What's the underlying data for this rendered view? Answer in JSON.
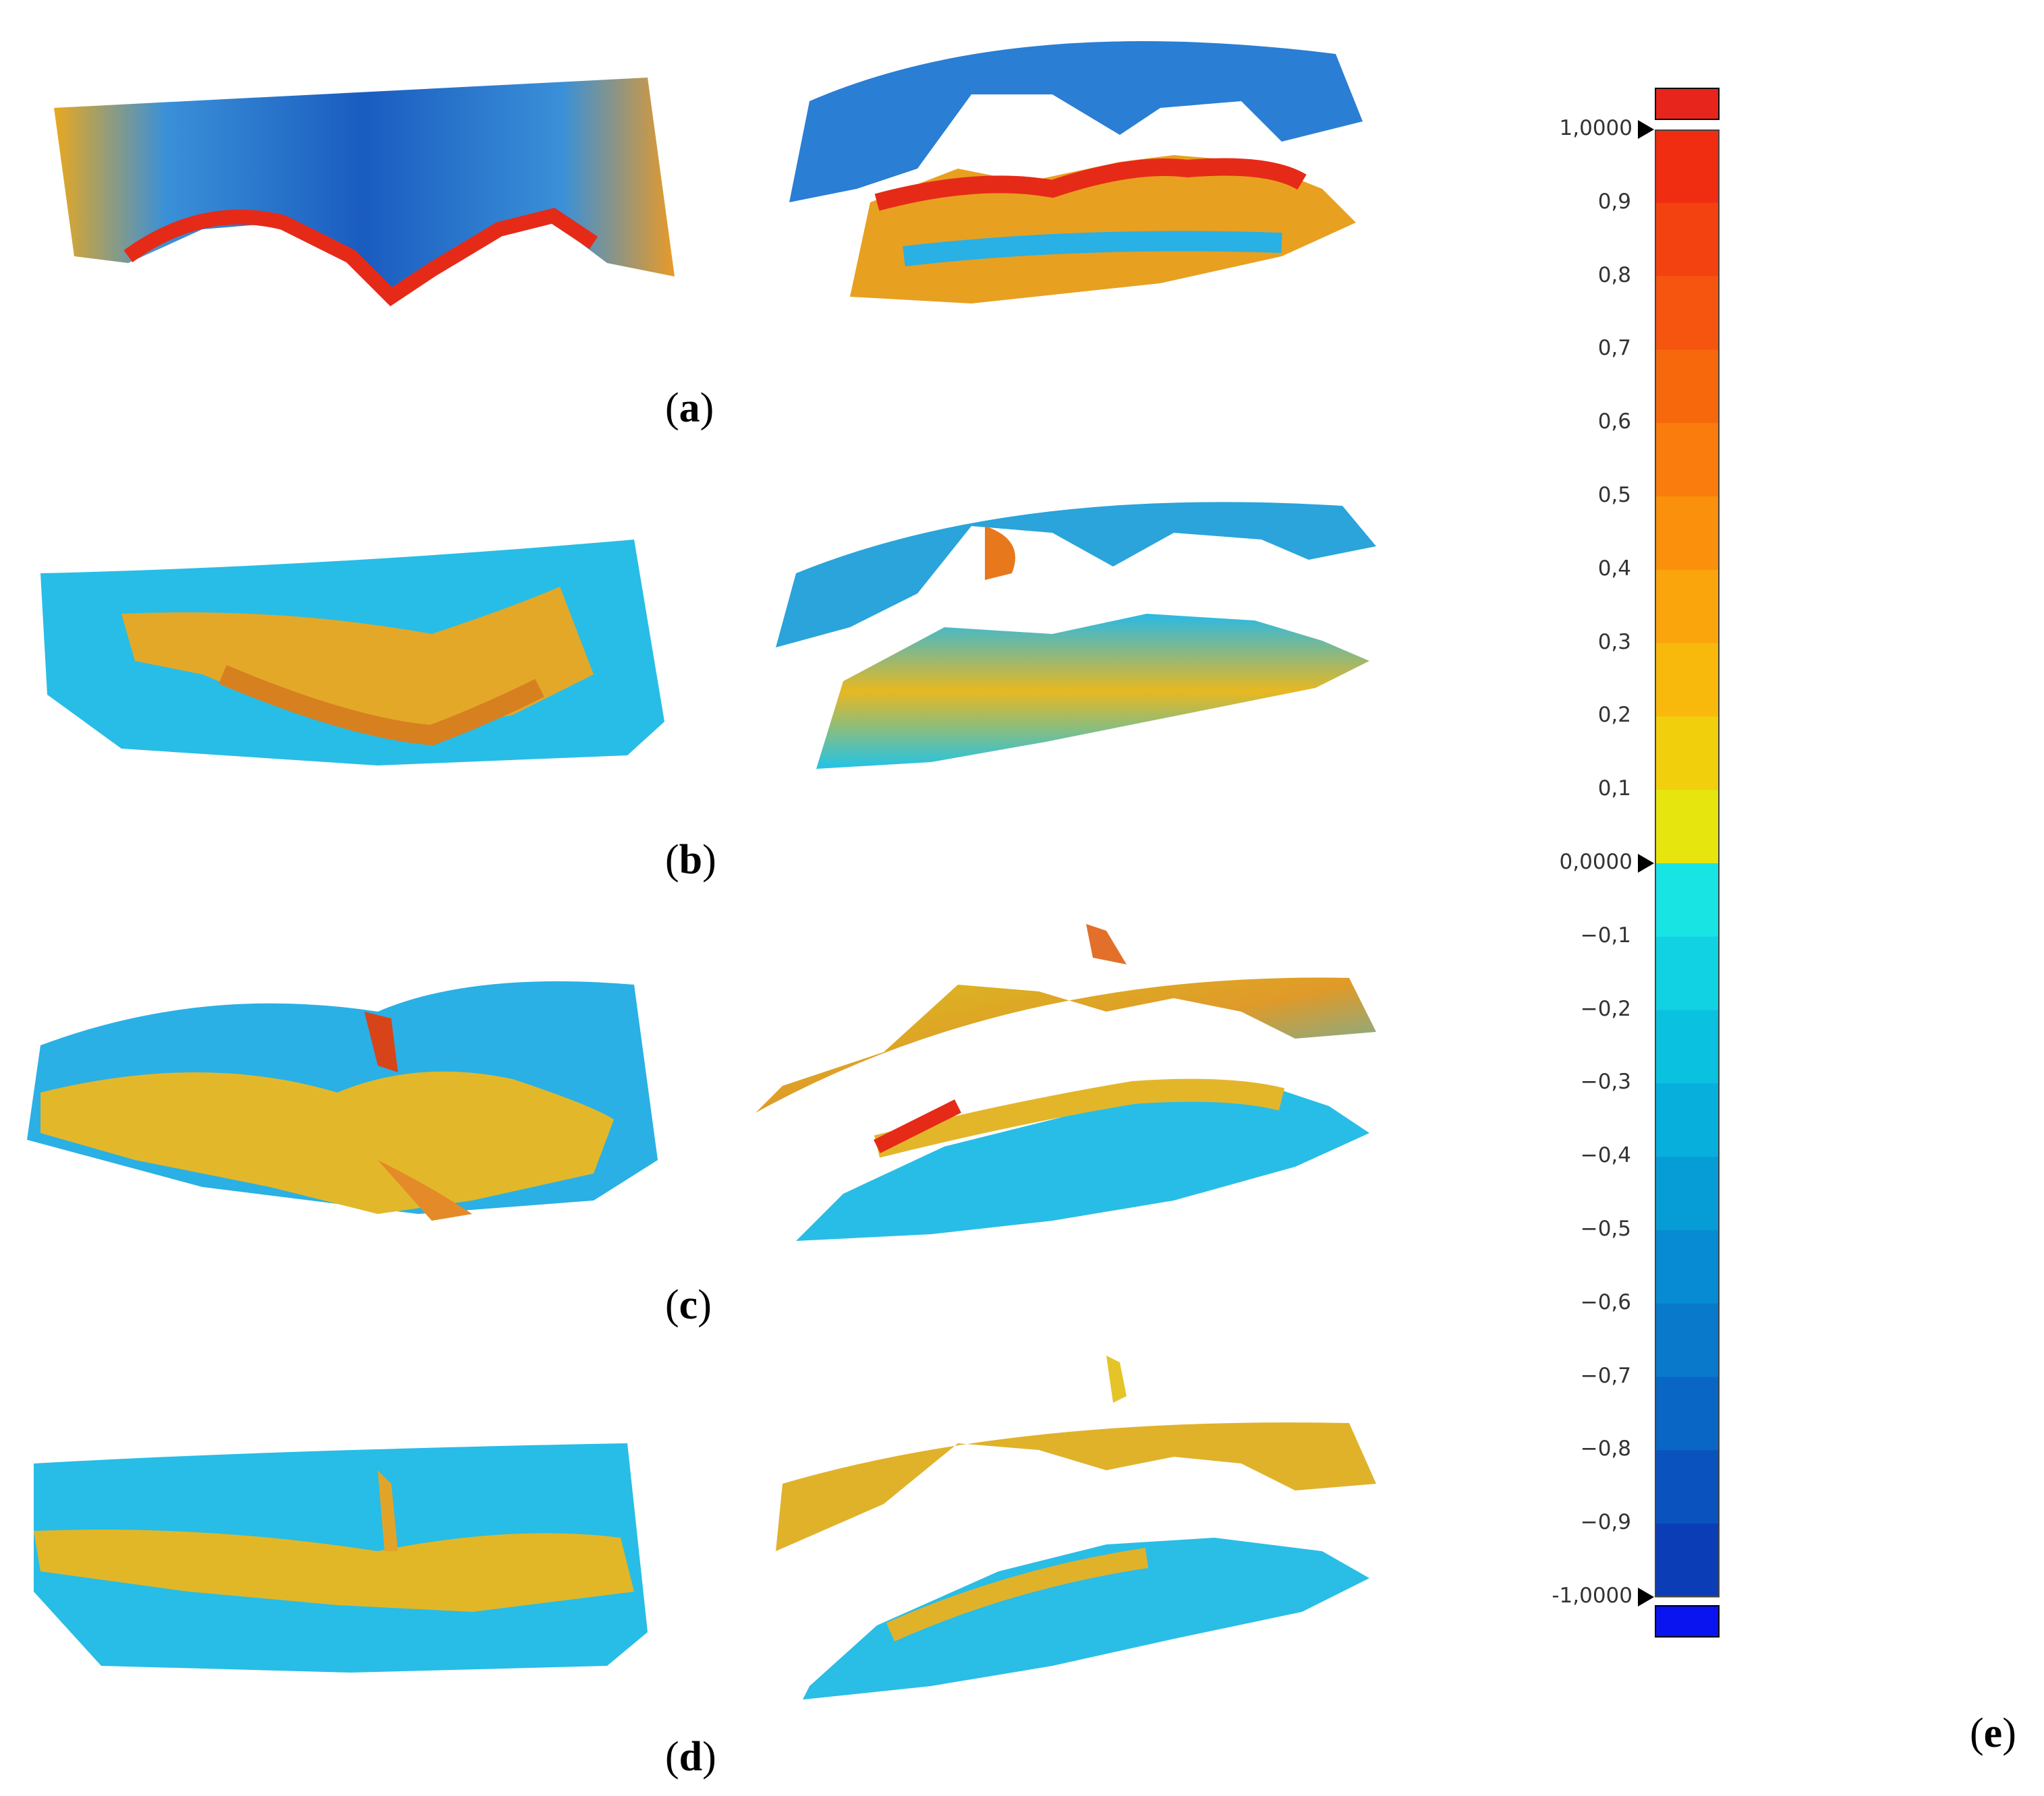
{
  "panels": [
    {
      "id": "a",
      "label": "a"
    },
    {
      "id": "b",
      "label": "b"
    },
    {
      "id": "c",
      "label": "c"
    },
    {
      "id": "d",
      "label": "d"
    },
    {
      "id": "e",
      "label": "e"
    }
  ],
  "colorbar": {
    "max": 1.0,
    "min": -1.0,
    "step": 0.1,
    "above_range_color": "#e8251c",
    "below_range_color": "#0a14f0",
    "ticks": [
      {
        "value": 1.0,
        "label": "1,0000",
        "marker": true
      },
      {
        "value": 0.9,
        "label": "0,9"
      },
      {
        "value": 0.8,
        "label": "0,8"
      },
      {
        "value": 0.7,
        "label": "0,7"
      },
      {
        "value": 0.6,
        "label": "0,6"
      },
      {
        "value": 0.5,
        "label": "0,5"
      },
      {
        "value": 0.4,
        "label": "0,4"
      },
      {
        "value": 0.3,
        "label": "0,3"
      },
      {
        "value": 0.2,
        "label": "0,2"
      },
      {
        "value": 0.1,
        "label": "0,1"
      },
      {
        "value": 0.0,
        "label": "0,0000",
        "marker": true
      },
      {
        "value": -0.1,
        "label": "−0,1"
      },
      {
        "value": -0.2,
        "label": "−0,2"
      },
      {
        "value": -0.3,
        "label": "−0,3"
      },
      {
        "value": -0.4,
        "label": "−0,4"
      },
      {
        "value": -0.5,
        "label": "−0,5"
      },
      {
        "value": -0.6,
        "label": "−0,6"
      },
      {
        "value": -0.7,
        "label": "−0,7"
      },
      {
        "value": -0.8,
        "label": "−0,8"
      },
      {
        "value": -0.9,
        "label": "−0,9"
      },
      {
        "value": -1.0,
        "label": "-1,0000",
        "marker": true
      }
    ],
    "band_colors": [
      "#f02d10",
      "#f3420f",
      "#f5550e",
      "#f7680d",
      "#f97c0c",
      "#fa900c",
      "#fba50c",
      "#f9b90c",
      "#f1cf0c",
      "#e6e60e",
      "#19e4e4",
      "#11d2e3",
      "#0bc1e0",
      "#07afdc",
      "#069dd7",
      "#078bd2",
      "#0879cb",
      "#0966c4",
      "#0a52bd",
      "#0b3db7"
    ]
  }
}
